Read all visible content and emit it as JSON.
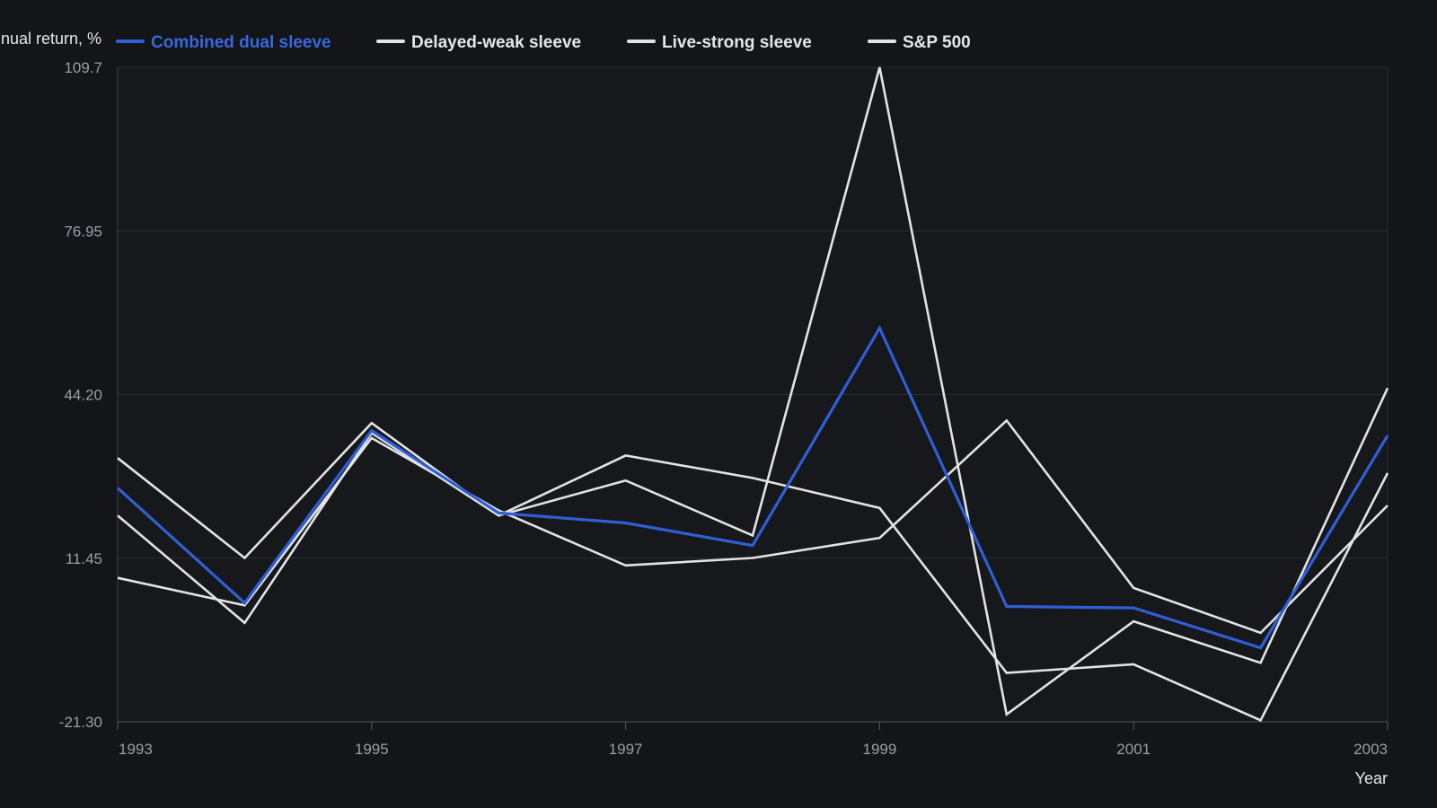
{
  "chart_data": {
    "type": "line",
    "title": "",
    "xlabel": "Year",
    "ylabel": "Annual return, %",
    "x": [
      1993,
      1994,
      1995,
      1996,
      1997,
      1998,
      1999,
      2000,
      2001,
      2002,
      2003
    ],
    "x_tick_labels": [
      "1993",
      "1995",
      "1997",
      "1999",
      "2001",
      "2003"
    ],
    "x_tick_values": [
      1993,
      1995,
      1997,
      1999,
      2001,
      2003
    ],
    "y_tick_labels": [
      "-21.30",
      "11.45",
      "44.20",
      "76.95",
      "109.7"
    ],
    "y_tick_values": [
      -21.3,
      11.45,
      44.2,
      76.95,
      109.7
    ],
    "ylim": [
      -21.3,
      109.7
    ],
    "xlim": [
      1993,
      2003
    ],
    "grid": true,
    "legend_position": "top",
    "series": [
      {
        "name": "Combined dual sleeve",
        "color": "#2f5fd6",
        "values": [
          25.5,
          2.5,
          37.0,
          20.5,
          18.5,
          14.0,
          57.5,
          1.8,
          1.5,
          -6.5,
          36.0
        ]
      },
      {
        "name": "Delayed-weak sleeve",
        "color": "#e3e3e3",
        "values": [
          31.5,
          11.5,
          38.5,
          20.0,
          32.0,
          27.5,
          21.5,
          -11.5,
          -9.8,
          -21.0,
          28.5
        ]
      },
      {
        "name": "Live-strong sleeve",
        "color": "#e3e3e3",
        "values": [
          7.5,
          2.0,
          35.5,
          21.0,
          10.0,
          11.5,
          15.5,
          39.0,
          5.5,
          -3.5,
          22.0
        ]
      },
      {
        "name": "S&P 500",
        "color": "#e3e3e3",
        "values": [
          20.0,
          -1.5,
          36.5,
          20.0,
          27.0,
          16.0,
          109.7,
          -19.8,
          -1.2,
          -9.5,
          45.5
        ]
      }
    ]
  }
}
